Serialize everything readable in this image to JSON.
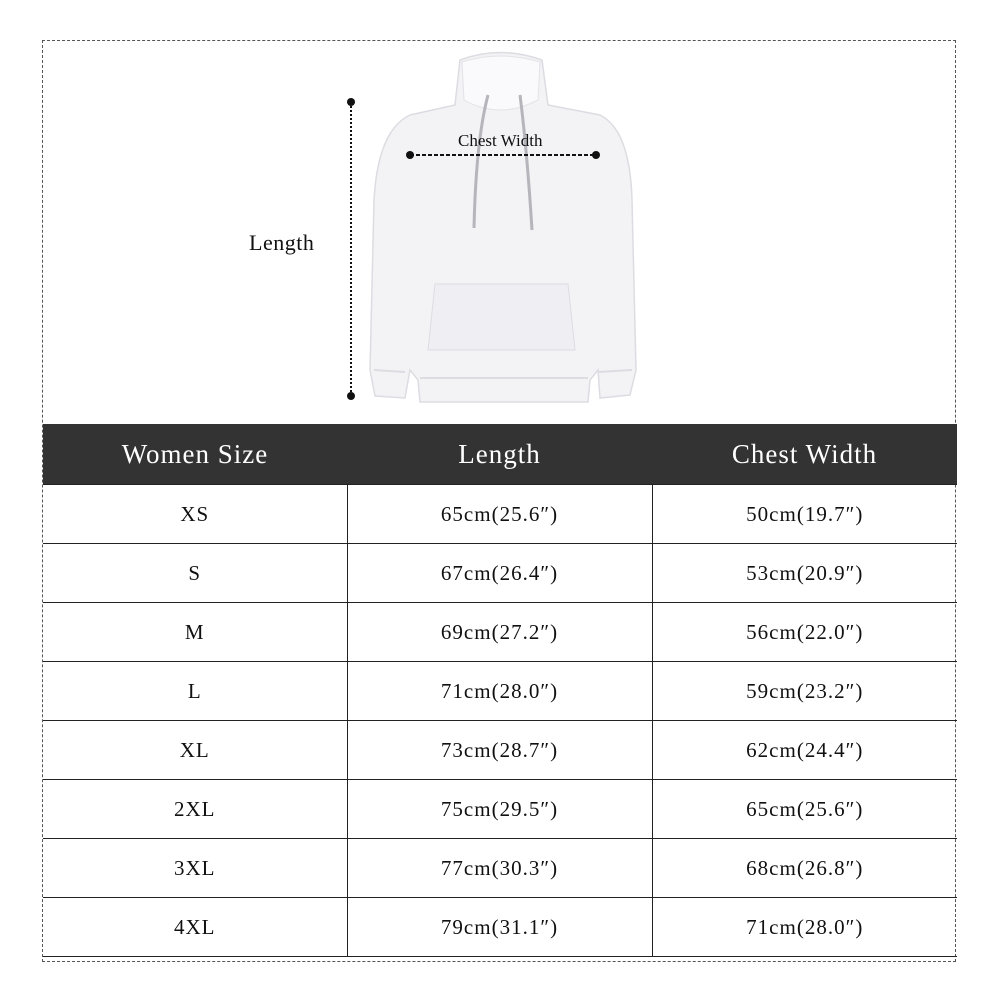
{
  "diagram": {
    "length_label": "Length",
    "chest_label": "Chest Width"
  },
  "table": {
    "headers": [
      "Women Size",
      "Length",
      "Chest Width"
    ],
    "rows": [
      [
        "XS",
        "65cm(25.6″)",
        "50cm(19.7″)"
      ],
      [
        "S",
        "67cm(26.4″)",
        "53cm(20.9″)"
      ],
      [
        "M",
        "69cm(27.2″)",
        "56cm(22.0″)"
      ],
      [
        "L",
        "71cm(28.0″)",
        "59cm(23.2″)"
      ],
      [
        "XL",
        "73cm(28.7″)",
        "62cm(24.4″)"
      ],
      [
        "2XL",
        "75cm(29.5″)",
        "65cm(25.6″)"
      ],
      [
        "3XL",
        "77cm(30.3″)",
        "68cm(26.8″)"
      ],
      [
        "4XL",
        "79cm(31.1″)",
        "71cm(28.0″)"
      ]
    ]
  },
  "colors": {
    "header_bg": "#333333",
    "header_text": "#ffffff"
  }
}
